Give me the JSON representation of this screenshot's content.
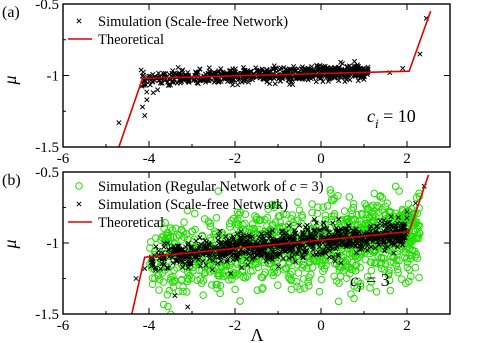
{
  "chart_data": [
    {
      "type": "scatter",
      "panel_label": "(a)",
      "ylabel": "μ",
      "xlim": [
        -6,
        3
      ],
      "ylim": [
        -1.5,
        -0.5
      ],
      "xticks": [
        "-6",
        "-4",
        "-2",
        "0",
        "2"
      ],
      "yticks": [
        "-1.5",
        "-1",
        "-0.5"
      ],
      "annotation": {
        "base": "c",
        "sub": "i",
        "rest": " = 10"
      },
      "legend": [
        {
          "name": "Simulation (Scale-free  Network)",
          "marker": "x",
          "color": "#000000"
        },
        {
          "name": "Theoretical",
          "marker": "line",
          "color": "#e00000"
        }
      ],
      "theory": {
        "x": [
          -4.7,
          -4.15,
          2.05,
          2.55
        ],
        "y": [
          -1.5,
          -1.02,
          -0.97,
          -0.55
        ]
      },
      "cloud": {
        "x_range": [
          -4.2,
          1.1
        ],
        "center_line": [
          [
            -4.2,
            -1.03
          ],
          [
            1.1,
            -0.97
          ]
        ],
        "spread": 0.025
      },
      "outliers": {
        "x": [
          -4.7,
          -4.15,
          -4.1,
          -4.05,
          -3.8,
          -3.9,
          1.6,
          1.9,
          2.3,
          2.45
        ],
        "y": [
          -1.33,
          -1.22,
          -1.28,
          -1.17,
          -1.1,
          -1.12,
          -0.98,
          -0.95,
          -0.85,
          -0.6
        ]
      }
    },
    {
      "type": "scatter",
      "panel_label": "(b)",
      "ylabel": "μ",
      "xlabel": "Λ",
      "xlim": [
        -6,
        3
      ],
      "ylim": [
        -1.5,
        -0.5
      ],
      "xticks": [
        "-6",
        "-4",
        "-2",
        "0",
        "2"
      ],
      "yticks": [
        "-1.5",
        "-1",
        "-0.5"
      ],
      "annotation": {
        "base": "c",
        "sub": "i",
        "rest": " = 3"
      },
      "legend": [
        {
          "name": "Simulation (Regular Network of ",
          "italic_suffix": "c",
          "suffix": " = 3)",
          "marker": "o",
          "color": "#00dd00"
        },
        {
          "name": "Simulation (Scale-free Network)",
          "marker": "x",
          "color": "#000000"
        },
        {
          "name": "Theoretical",
          "marker": "line",
          "color": "#e00000"
        }
      ],
      "theory": {
        "x": [
          -4.4,
          -4.1,
          2.05,
          2.5
        ],
        "y": [
          -1.5,
          -1.1,
          -0.92,
          -0.52
        ]
      },
      "green_cloud": {
        "x_range": [
          -4.0,
          2.3
        ],
        "center_line": [
          [
            -4.0,
            -1.12
          ],
          [
            2.3,
            -0.95
          ]
        ],
        "spread": 0.14
      },
      "black_cloud": {
        "x_range": [
          -4.0,
          2.0
        ],
        "center_line": [
          [
            -4.0,
            -1.1
          ],
          [
            2.0,
            -0.93
          ]
        ],
        "spread": 0.05
      },
      "outliers": {
        "x": [
          -4.3,
          -4.1,
          -3.9,
          -3.4,
          -3.1,
          1.8,
          2.0,
          2.2,
          2.4
        ],
        "y": [
          -1.25,
          -1.18,
          -1.15,
          -1.37,
          -1.45,
          -0.82,
          -0.78,
          -0.72,
          -0.6
        ]
      }
    }
  ]
}
